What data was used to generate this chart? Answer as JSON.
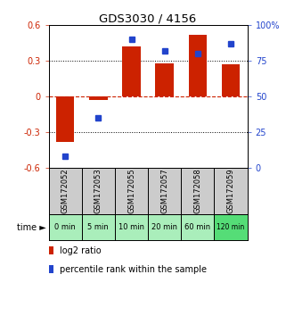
{
  "title": "GDS3030 / 4156",
  "samples": [
    "GSM172052",
    "GSM172053",
    "GSM172055",
    "GSM172057",
    "GSM172058",
    "GSM172059"
  ],
  "time_labels": [
    "0 min",
    "5 min",
    "10 min",
    "20 min",
    "60 min",
    "120 min"
  ],
  "log2_ratio": [
    -0.38,
    -0.03,
    0.42,
    0.28,
    0.52,
    0.27
  ],
  "percentile_rank": [
    8,
    35,
    90,
    82,
    80,
    87
  ],
  "bar_color": "#cc2200",
  "dot_color": "#2244cc",
  "left_ylim": [
    -0.6,
    0.6
  ],
  "left_yticks": [
    -0.6,
    -0.3,
    0,
    0.3,
    0.6
  ],
  "right_ylim": [
    0,
    100
  ],
  "right_yticks": [
    0,
    25,
    50,
    75,
    100
  ],
  "right_yticklabels": [
    "0",
    "25",
    "50",
    "75",
    "100%"
  ],
  "zero_line_color": "#cc2200",
  "grid_color": "#000000",
  "sample_bg_color": "#cccccc",
  "time_bg_color": "#aaeebb",
  "time_bg_color_dark": "#55dd77",
  "legend_bar_label": "log2 ratio",
  "legend_dot_label": "percentile rank within the sample"
}
